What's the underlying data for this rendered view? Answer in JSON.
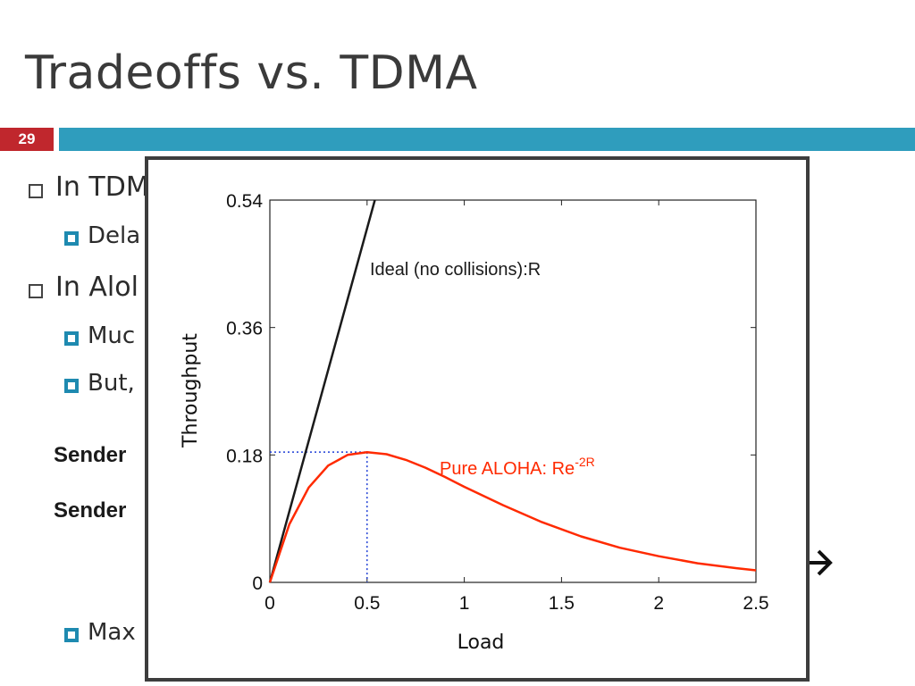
{
  "slide": {
    "title": "Tradeoffs vs. TDMA",
    "number": "29",
    "bullets": [
      {
        "text": "In TDM",
        "level": 1
      },
      {
        "text": "Dela",
        "level": 2
      },
      {
        "text": "In Alol",
        "level": 1
      },
      {
        "text": "Muc",
        "level": 2
      },
      {
        "text": "But,",
        "level": 2
      },
      {
        "text": "Max",
        "level": 2
      }
    ],
    "senders": [
      "Sender",
      "Sender"
    ]
  },
  "chart_data": {
    "type": "line",
    "xlabel": "Load",
    "ylabel": "Throughput",
    "xlim": [
      0,
      2.5
    ],
    "ylim": [
      0,
      0.54
    ],
    "xticks": [
      "0",
      "0.5",
      "1",
      "1.5",
      "2",
      "2.5"
    ],
    "yticks": [
      "0",
      "0.18",
      "0.36",
      "0.54"
    ],
    "grid": false,
    "series": [
      {
        "name": "Ideal (no collisions):R",
        "color": "#1a1a1a",
        "x": [
          0,
          0.54
        ],
        "y": [
          0,
          0.54
        ]
      },
      {
        "name": "Pure ALOHA: Re",
        "name_superscript": "-2R",
        "color": "#ff2a00",
        "x": [
          0,
          0.1,
          0.2,
          0.3,
          0.4,
          0.5,
          0.6,
          0.7,
          0.8,
          0.9,
          1.0,
          1.2,
          1.4,
          1.6,
          1.8,
          2.0,
          2.2,
          2.4,
          2.5
        ],
        "y": [
          0,
          0.082,
          0.134,
          0.165,
          0.18,
          0.184,
          0.181,
          0.173,
          0.162,
          0.149,
          0.135,
          0.109,
          0.085,
          0.065,
          0.049,
          0.037,
          0.027,
          0.02,
          0.017
        ]
      }
    ],
    "guides": {
      "color": "#1f3fd6",
      "style": "dotted",
      "point": {
        "x": 0.5,
        "y": 0.184
      }
    }
  }
}
